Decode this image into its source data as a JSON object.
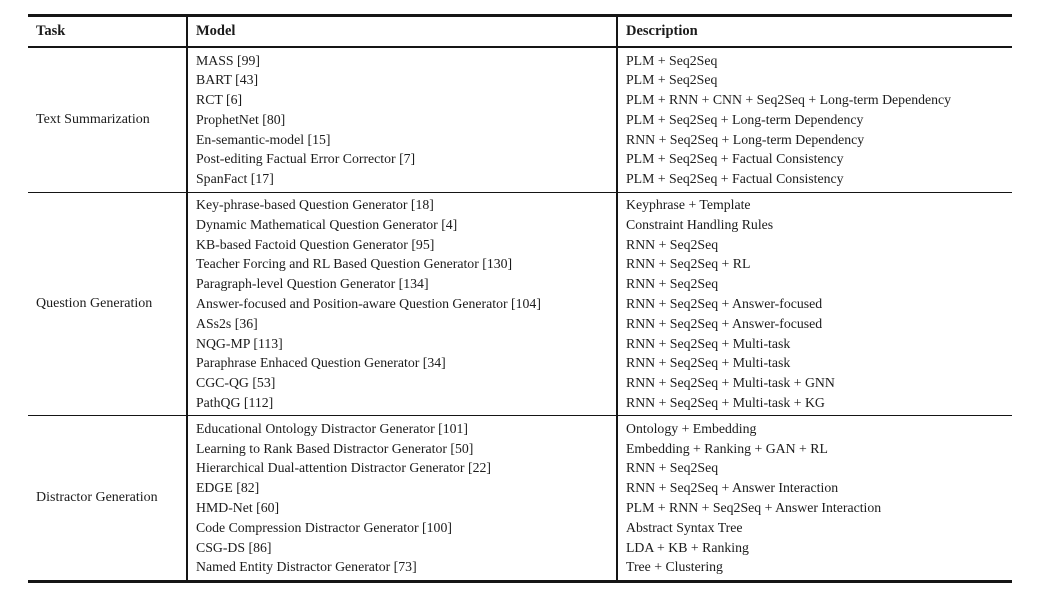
{
  "table": {
    "headers": {
      "task": "Task",
      "model": "Model",
      "description": "Description"
    },
    "groups": [
      {
        "task": "Text Summarization",
        "rows": [
          {
            "model": "MASS [99]",
            "desc": "PLM + Seq2Seq"
          },
          {
            "model": "BART [43]",
            "desc": "PLM + Seq2Seq"
          },
          {
            "model": "RCT [6]",
            "desc": "PLM + RNN + CNN + Seq2Seq + Long-term Dependency"
          },
          {
            "model": "ProphetNet [80]",
            "desc": "PLM + Seq2Seq + Long-term Dependency"
          },
          {
            "model": "En-semantic-model [15]",
            "desc": "RNN + Seq2Seq + Long-term Dependency"
          },
          {
            "model": "Post-editing Factual Error Corrector [7]",
            "desc": "PLM + Seq2Seq + Factual Consistency"
          },
          {
            "model": "SpanFact [17]",
            "desc": "PLM + Seq2Seq + Factual Consistency"
          }
        ]
      },
      {
        "task": "Question Generation",
        "rows": [
          {
            "model": "Key-phrase-based Question Generator [18]",
            "desc": "Keyphrase + Template"
          },
          {
            "model": "Dynamic Mathematical Question Generator [4]",
            "desc": "Constraint Handling Rules"
          },
          {
            "model": "KB-based Factoid Question Generator [95]",
            "desc": "RNN + Seq2Seq"
          },
          {
            "model": "Teacher Forcing and RL Based Question Generator [130]",
            "desc": "RNN + Seq2Seq + RL"
          },
          {
            "model": "Paragraph-level Question Generator [134]",
            "desc": "RNN + Seq2Seq"
          },
          {
            "model": "Answer-focused and Position-aware Question Generator [104]",
            "desc": "RNN + Seq2Seq + Answer-focused"
          },
          {
            "model": "ASs2s [36]",
            "desc": "RNN + Seq2Seq + Answer-focused"
          },
          {
            "model": "NQG-MP [113]",
            "desc": "RNN + Seq2Seq + Multi-task"
          },
          {
            "model": "Paraphrase Enhaced Question Generator [34]",
            "desc": "RNN + Seq2Seq + Multi-task"
          },
          {
            "model": "CGC-QG [53]",
            "desc": "RNN + Seq2Seq + Multi-task + GNN"
          },
          {
            "model": "PathQG [112]",
            "desc": "RNN + Seq2Seq + Multi-task + KG"
          }
        ]
      },
      {
        "task": "Distractor Generation",
        "rows": [
          {
            "model": "Educational Ontology Distractor Generator [101]",
            "desc": "Ontology + Embedding"
          },
          {
            "model": "Learning to Rank Based Distractor Generator [50]",
            "desc": "Embedding + Ranking + GAN + RL"
          },
          {
            "model": "Hierarchical Dual-attention Distractor Generator [22]",
            "desc": "RNN + Seq2Seq"
          },
          {
            "model": "EDGE [82]",
            "desc": "RNN + Seq2Seq + Answer Interaction"
          },
          {
            "model": "HMD-Net [60]",
            "desc": "PLM + RNN + Seq2Seq + Answer Interaction"
          },
          {
            "model": "Code Compression Distractor Generator [100]",
            "desc": "Abstract Syntax Tree"
          },
          {
            "model": "CSG-DS [86]",
            "desc": "LDA + KB + Ranking"
          },
          {
            "model": "Named Entity Distractor Generator [73]",
            "desc": "Tree + Clustering"
          }
        ]
      }
    ]
  }
}
